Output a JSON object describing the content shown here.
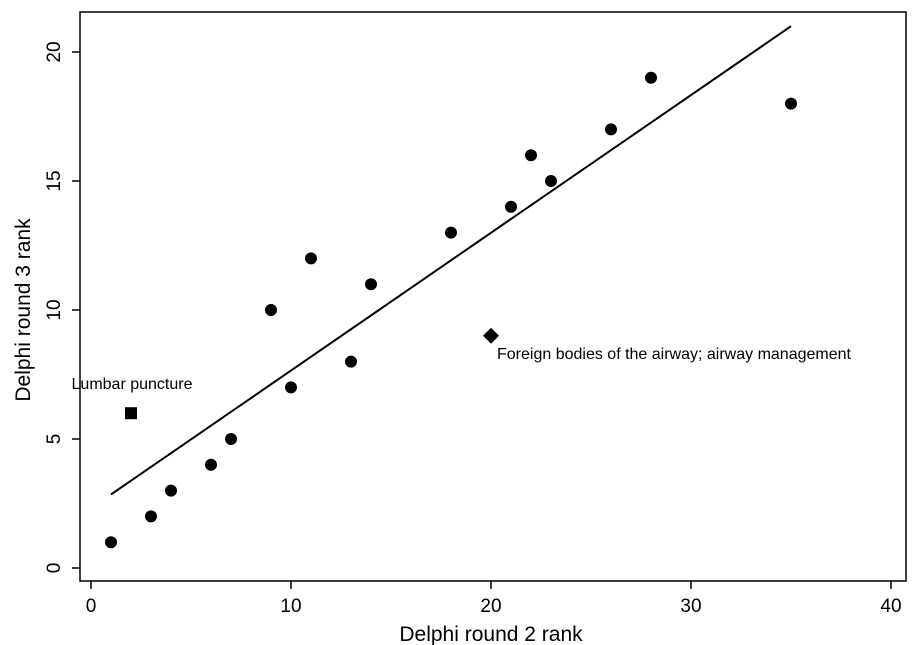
{
  "chart_data": {
    "type": "scatter",
    "xlabel": "Delphi round 2 rank",
    "ylabel": "Delphi round 3 rank",
    "xlim": [
      -0.5,
      40.5
    ],
    "ylim": [
      -0.5,
      21.5
    ],
    "xticks": [
      0,
      10,
      20,
      30,
      40
    ],
    "yticks": [
      0,
      5,
      10,
      15,
      20
    ],
    "grid": false,
    "points": [
      {
        "x": 1,
        "y": 1
      },
      {
        "x": 3,
        "y": 2
      },
      {
        "x": 4,
        "y": 3
      },
      {
        "x": 6,
        "y": 4
      },
      {
        "x": 7,
        "y": 5
      },
      {
        "x": 9,
        "y": 10
      },
      {
        "x": 10,
        "y": 7
      },
      {
        "x": 11,
        "y": 12
      },
      {
        "x": 13,
        "y": 8
      },
      {
        "x": 14,
        "y": 11
      },
      {
        "x": 18,
        "y": 13
      },
      {
        "x": 21,
        "y": 14
      },
      {
        "x": 22,
        "y": 16
      },
      {
        "x": 23,
        "y": 15
      },
      {
        "x": 26,
        "y": 17
      },
      {
        "x": 28,
        "y": 19
      },
      {
        "x": 35,
        "y": 18
      }
    ],
    "outliers": [
      {
        "x": 2,
        "y": 6,
        "marker": "square",
        "label": "Lumbar puncture"
      },
      {
        "x": 20,
        "y": 9,
        "marker": "diamond",
        "label": "Foreign bodies of the airway; airway management"
      }
    ],
    "fit_line": {
      "x": [
        1,
        35
      ],
      "y": [
        2.85,
        21.0
      ]
    }
  }
}
